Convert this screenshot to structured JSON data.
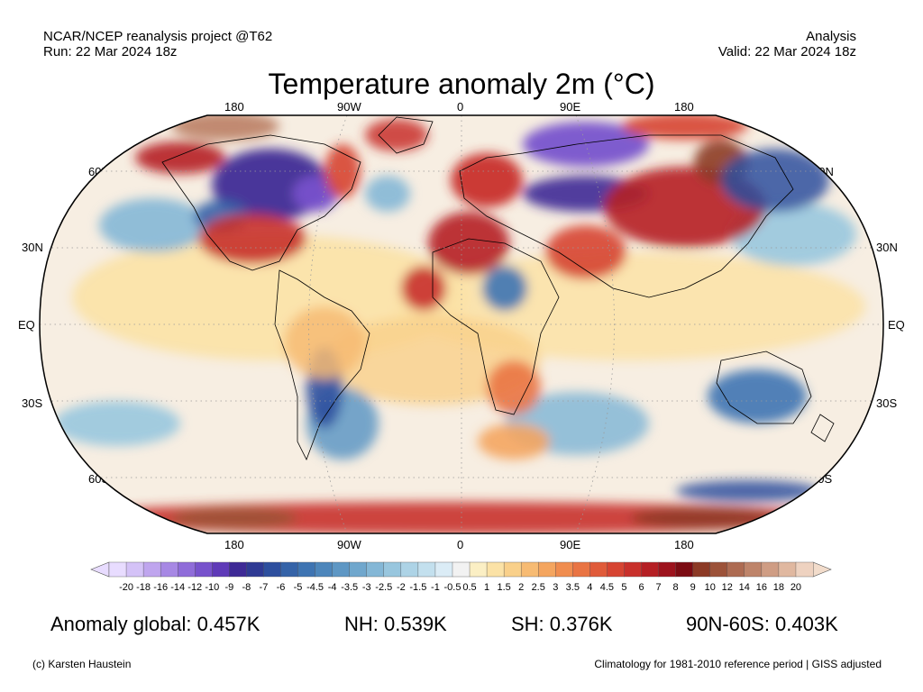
{
  "header": {
    "source": "NCAR/NCEP reanalysis project @T62",
    "run": "Run: 22 Mar 2024 18z",
    "type": "Analysis",
    "valid": "Valid: 22 Mar 2024 18z"
  },
  "title": "Temperature anomaly 2m (°C)",
  "map": {
    "projection": "Robinson",
    "lon_labels_top": [
      "180",
      "90W",
      "0",
      "90E",
      "180"
    ],
    "lon_labels_bottom": [
      "180",
      "90W",
      "0",
      "90E",
      "180"
    ],
    "lat_labels_left": [
      "60N",
      "30N",
      "EQ",
      "30S",
      "60S"
    ],
    "lat_labels_right": [
      "60N",
      "30N",
      "EQ",
      "30S",
      "60S"
    ],
    "gridlines": "dotted",
    "features": [
      "coastlines",
      "country borders"
    ]
  },
  "colorbar": {
    "ticks": [
      "-20",
      "-18",
      "-16",
      "-14",
      "-12",
      "-10",
      "-9",
      "-8",
      "-7",
      "-6",
      "-5",
      "-4.5",
      "-4",
      "-3.5",
      "-3",
      "-2.5",
      "-2",
      "-1.5",
      "-1",
      "-0.5",
      "0.5",
      "1",
      "1.5",
      "2",
      "2.5",
      "3",
      "3.5",
      "4",
      "4.5",
      "5",
      "6",
      "7",
      "8",
      "9",
      "10",
      "12",
      "14",
      "16",
      "18",
      "20"
    ],
    "colors": [
      "#e8dcff",
      "#d4c2f7",
      "#bfa5ee",
      "#a788e4",
      "#8f6cd9",
      "#7752cc",
      "#5f3ab8",
      "#3e2a96",
      "#2f3a94",
      "#2d4f9e",
      "#3563a8",
      "#3e74b2",
      "#4d86bb",
      "#5e97c4",
      "#70a7cd",
      "#84b7d6",
      "#98c6de",
      "#add3e6",
      "#c3e0ee",
      "#dbecf6",
      "#f2f2f2",
      "#fbefc4",
      "#fbe2a6",
      "#f9d08a",
      "#f7bb73",
      "#f4a55f",
      "#f08d4f",
      "#e97443",
      "#e05b3a",
      "#d64432",
      "#c8302b",
      "#b51f24",
      "#9d131d",
      "#7c0c13",
      "#8c3a26",
      "#9c5239",
      "#ad6b52",
      "#be846a",
      "#cf9d84",
      "#e0b8a0",
      "#eed2c0"
    ],
    "end_colors": {
      "low": "#e8dcff",
      "high": "#f2dccb"
    }
  },
  "stats": {
    "global": "Anomaly global: 0.457K",
    "nh": "NH: 0.539K",
    "sh": "SH: 0.376K",
    "arctic": "90N-60S: 0.403K"
  },
  "footer": {
    "credit": "(c) Karsten Haustein",
    "note": "Climatology for 1981-2010 reference period | GISS adjusted"
  }
}
